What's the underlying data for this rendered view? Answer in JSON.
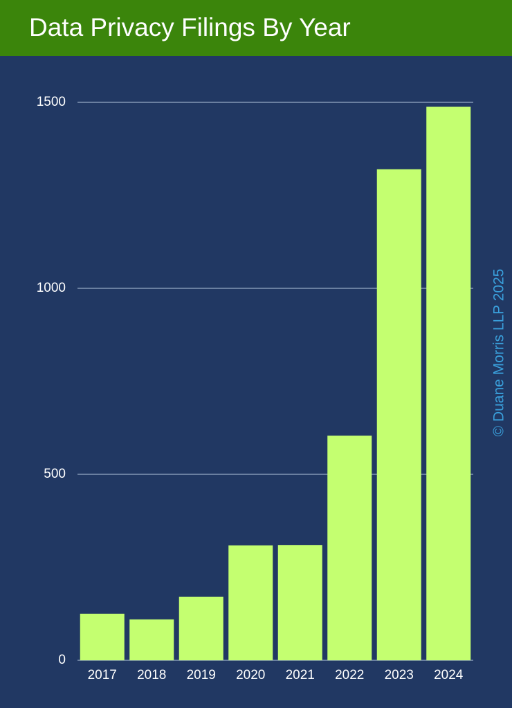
{
  "chart_data": {
    "type": "bar",
    "title": "Data Privacy Filings By Year",
    "categories": [
      "2017",
      "2018",
      "2019",
      "2020",
      "2021",
      "2022",
      "2023",
      "2024"
    ],
    "values": [
      125,
      110,
      171,
      309,
      310,
      604,
      1320,
      1488
    ],
    "color": "#c4ff70",
    "ylim": [
      0,
      1500
    ],
    "yticks": [
      0,
      500,
      1000,
      1500
    ],
    "grid": true,
    "watermark": "© Duane Morris LLP 2025"
  }
}
